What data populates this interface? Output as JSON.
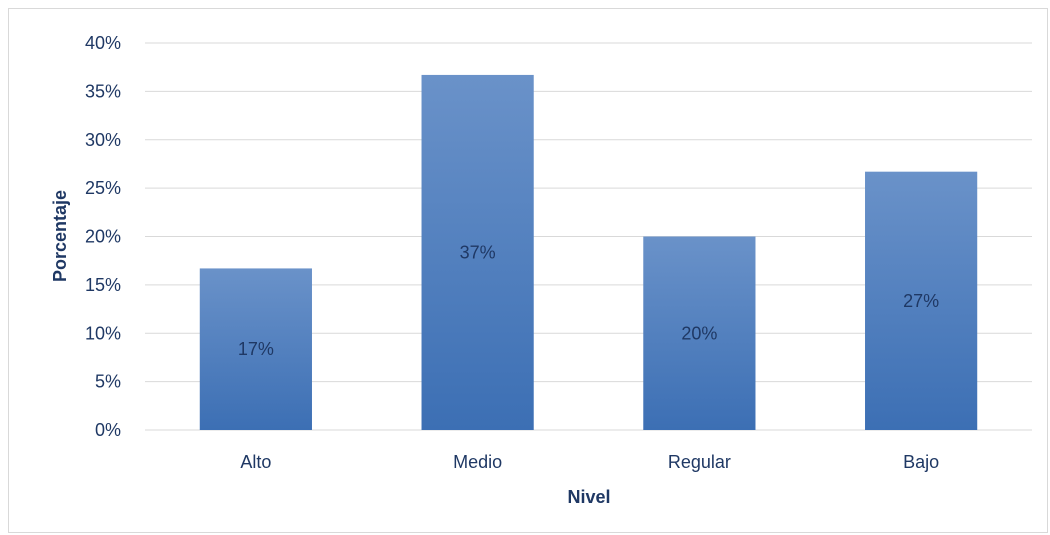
{
  "chart_data": {
    "type": "bar",
    "title": "",
    "xlabel": "Nivel",
    "ylabel": "Porcentaje",
    "categories": [
      "Alto",
      "Medio",
      "Regular",
      "Bajo"
    ],
    "values": [
      17,
      37,
      20,
      27
    ],
    "bar_values": [
      16.7,
      36.7,
      20.0,
      26.7
    ],
    "data_labels": [
      "17%",
      "37%",
      "20%",
      "27%"
    ],
    "ylim": [
      0,
      40
    ],
    "yticks": [
      0,
      5,
      10,
      15,
      20,
      25,
      30,
      35,
      40
    ],
    "ytick_labels": [
      "0%",
      "5%",
      "10%",
      "15%",
      "20%",
      "25%",
      "30%",
      "35%",
      "40%"
    ],
    "grid": true,
    "legend": "none",
    "colors": {
      "bar_top": "#6a92c9",
      "bar_bottom": "#3c6fb4",
      "gridline": "#d9d9d9",
      "text": "#1f3864"
    }
  }
}
